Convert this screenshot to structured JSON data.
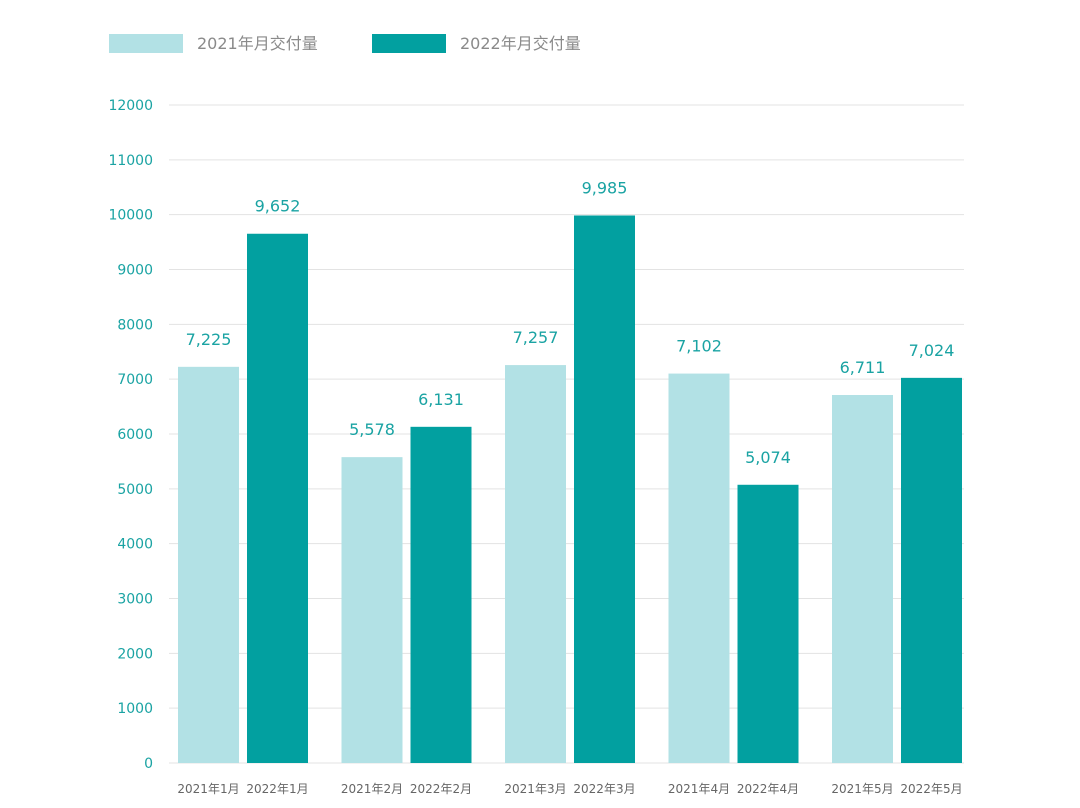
{
  "colors": {
    "series_2021": "#b2e1e5",
    "series_2022": "#02a0a0",
    "tick": "#1aa3a3"
  },
  "legend": [
    {
      "name": "2021年月交付量",
      "color": "#b2e1e5"
    },
    {
      "name": "2022年月交付量",
      "color": "#02a0a0"
    }
  ],
  "chart_data": {
    "type": "bar",
    "title": "",
    "xlabel": "",
    "ylabel": "",
    "ylim": [
      0,
      12000
    ],
    "yticks": [
      0,
      1000,
      2000,
      3000,
      4000,
      5000,
      6000,
      7000,
      8000,
      9000,
      10000,
      11000,
      12000
    ],
    "grid": true,
    "legend_position": "top-left",
    "groups": [
      {
        "bars": [
          {
            "label": "2021年1月",
            "value": 7225,
            "value_label": "7,225",
            "series": 0
          },
          {
            "label": "2022年1月",
            "value": 9652,
            "value_label": "9,652",
            "series": 1
          }
        ]
      },
      {
        "bars": [
          {
            "label": "2021年2月",
            "value": 5578,
            "value_label": "5,578",
            "series": 0
          },
          {
            "label": "2022年2月",
            "value": 6131,
            "value_label": "6,131",
            "series": 1
          }
        ]
      },
      {
        "bars": [
          {
            "label": "2021年3月",
            "value": 7257,
            "value_label": "7,257",
            "series": 0
          },
          {
            "label": "2022年3月",
            "value": 9985,
            "value_label": "9,985",
            "series": 1
          }
        ]
      },
      {
        "bars": [
          {
            "label": "2021年4月",
            "value": 7102,
            "value_label": "7,102",
            "series": 0
          },
          {
            "label": "2022年4月",
            "value": 5074,
            "value_label": "5,074",
            "series": 1
          }
        ]
      },
      {
        "bars": [
          {
            "label": "2021年5月",
            "value": 6711,
            "value_label": "6,711",
            "series": 0
          },
          {
            "label": "2022年5月",
            "value": 7024,
            "value_label": "7,024",
            "series": 1
          }
        ]
      }
    ]
  }
}
